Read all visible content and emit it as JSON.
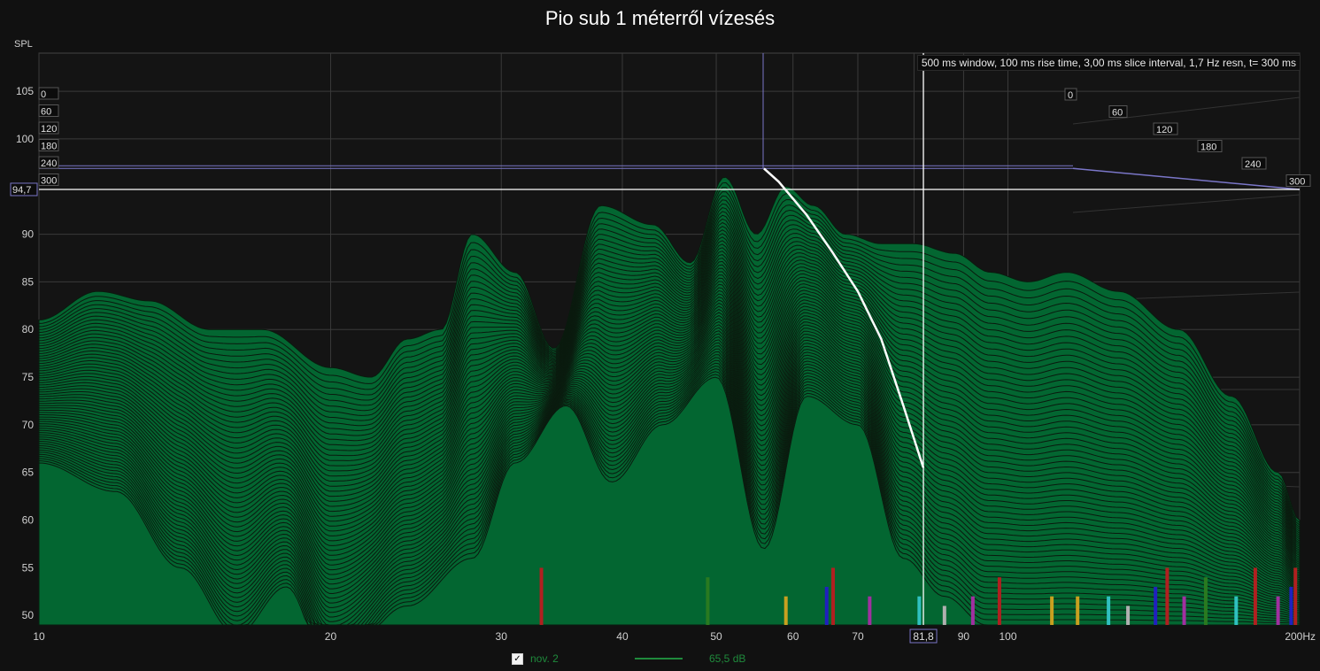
{
  "chart_data": {
    "type": "area",
    "title": "Pio sub 1 méterről vízesés",
    "ylabel": "SPL",
    "xlabel": "",
    "x_scale": "log",
    "xlim": [
      10,
      200
    ],
    "ylim": [
      49,
      109
    ],
    "x_ticks": [
      10,
      20,
      30,
      40,
      50,
      60,
      70,
      80,
      90,
      100,
      200
    ],
    "x_tick_labels": [
      "10",
      "20",
      "30",
      "40",
      "50",
      "60",
      "70",
      "",
      "90",
      "100",
      "200Hz"
    ],
    "y_ticks": [
      50,
      55,
      60,
      65,
      70,
      75,
      80,
      85,
      90,
      100,
      105
    ],
    "time_labels": [
      "0",
      "60",
      "120",
      "180",
      "240",
      "300"
    ],
    "info_text": "500 ms window, 100 ms rise time, 3,00 ms slice interval, 1,7 Hz resn, t= 300 ms",
    "cursor": {
      "x_label": "81,8",
      "y_label": "94,7",
      "x": 81.8,
      "y": 94.7
    },
    "series": [
      {
        "name": "nov. 2",
        "value_label": "65,5 dB",
        "front_slice": {
          "x": [
            10,
            12,
            14,
            16,
            18,
            20,
            24,
            28,
            31,
            35,
            39,
            44,
            50,
            56,
            62,
            70,
            78,
            86,
            95,
            105,
            120,
            140,
            160,
            180,
            200
          ],
          "y": [
            66,
            63,
            55,
            48,
            53,
            44,
            51,
            56,
            66,
            72,
            64,
            70,
            75,
            57,
            73,
            70,
            56,
            52,
            49,
            49,
            49,
            49,
            49,
            49,
            49
          ]
        },
        "back_slice": {
          "x": [
            10,
            11.5,
            13,
            15,
            17,
            20,
            22,
            24,
            26,
            28,
            31,
            34,
            38,
            43,
            47,
            51,
            55,
            59,
            63,
            68,
            74,
            80,
            88,
            96,
            105,
            115,
            130,
            150,
            170,
            190,
            200
          ],
          "y": [
            81,
            84,
            83,
            80,
            80,
            76,
            75,
            79,
            80,
            90,
            86,
            78,
            93,
            91,
            87,
            96,
            90,
            95,
            93,
            90,
            89,
            89,
            88,
            86,
            85,
            86,
            84,
            80,
            73,
            65,
            60
          ]
        }
      }
    ],
    "colors": {
      "fill": "#036631",
      "lines": "#0a1a0e",
      "grid": "#3a3a3a",
      "cursor": "#ffffff",
      "frame": "#7a76c8"
    }
  },
  "legend": {
    "checked": "✓",
    "series_name": "nov. 2",
    "value": "65,5 dB"
  }
}
